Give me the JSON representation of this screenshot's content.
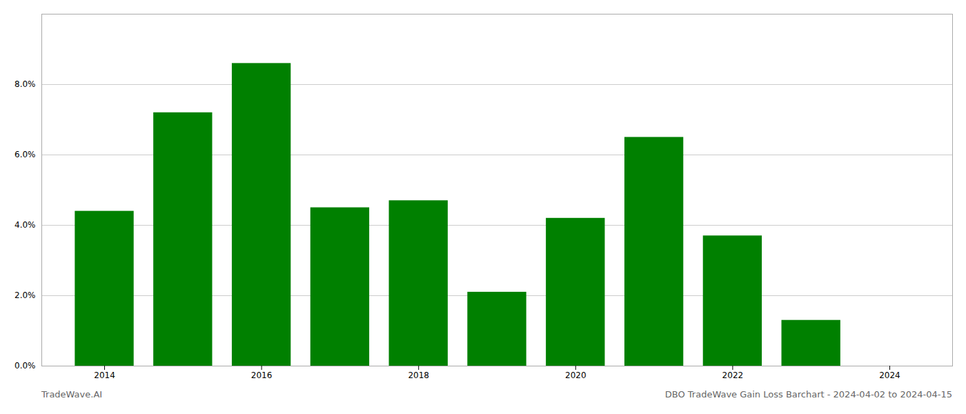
{
  "chart_data": {
    "type": "bar",
    "title": "DBO TradeWave Gain Loss Barchart - 2024-04-02 to 2024-04-15",
    "annotations": [
      "TradeWave.AI"
    ],
    "x": [
      2014,
      2015,
      2016,
      2017,
      2018,
      2019,
      2020,
      2021,
      2022,
      2023
    ],
    "values": [
      0.044,
      0.072,
      0.086,
      0.045,
      0.047,
      0.021,
      0.042,
      0.065,
      0.037,
      0.013
    ],
    "color": "#008000",
    "xlim": [
      2013.2,
      2024.8
    ],
    "xticks": [
      2014,
      2016,
      2018,
      2020,
      2022,
      2024
    ],
    "ylim": [
      0,
      0.1
    ],
    "yticks": [
      {
        "value": 0.0,
        "label": "0.0%"
      },
      {
        "value": 0.02,
        "label": "2.0%"
      },
      {
        "value": 0.04,
        "label": "4.0%"
      },
      {
        "value": 0.06,
        "label": "6.0%"
      },
      {
        "value": 0.08,
        "label": "8.0%"
      }
    ],
    "grid": true
  }
}
